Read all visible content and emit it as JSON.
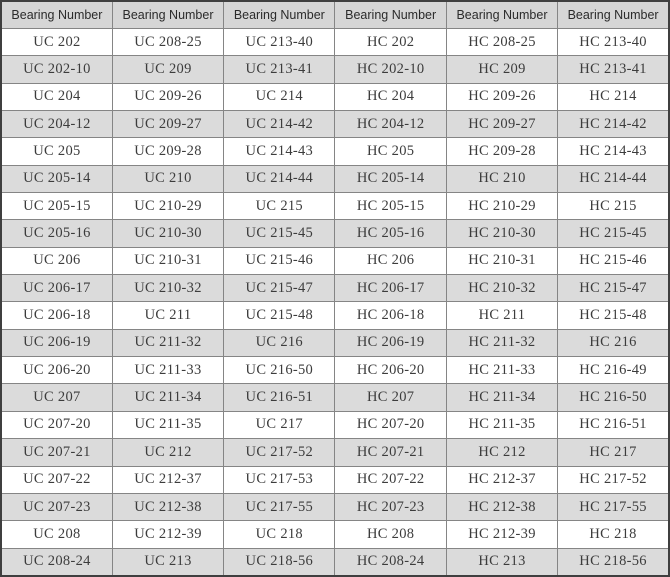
{
  "table": {
    "header_label": "Bearing Number",
    "num_columns": 6,
    "rows": [
      [
        "UC 202",
        "UC 208-25",
        "UC 213-40",
        "HC 202",
        "HC 208-25",
        "HC 213-40"
      ],
      [
        "UC 202-10",
        "UC 209",
        "UC 213-41",
        "HC 202-10",
        "HC 209",
        "HC 213-41"
      ],
      [
        "UC 204",
        "UC 209-26",
        "UC 214",
        "HC 204",
        "HC 209-26",
        "HC 214"
      ],
      [
        "UC 204-12",
        "UC 209-27",
        "UC 214-42",
        "HC 204-12",
        "HC 209-27",
        "HC 214-42"
      ],
      [
        "UC 205",
        "UC 209-28",
        "UC 214-43",
        "HC 205",
        "HC 209-28",
        "HC 214-43"
      ],
      [
        "UC 205-14",
        "UC 210",
        "UC 214-44",
        "HC 205-14",
        "HC 210",
        "HC 214-44"
      ],
      [
        "UC 205-15",
        "UC 210-29",
        "UC 215",
        "HC 205-15",
        "HC 210-29",
        "HC 215"
      ],
      [
        "UC 205-16",
        "UC 210-30",
        "UC 215-45",
        "HC 205-16",
        "HC 210-30",
        "HC 215-45"
      ],
      [
        "UC 206",
        "UC 210-31",
        "UC 215-46",
        "HC 206",
        "HC 210-31",
        "HC 215-46"
      ],
      [
        "UC 206-17",
        "UC 210-32",
        "UC 215-47",
        "HC 206-17",
        "HC 210-32",
        "HC 215-47"
      ],
      [
        "UC 206-18",
        "UC 211",
        "UC 215-48",
        "HC 206-18",
        "HC 211",
        "HC 215-48"
      ],
      [
        "UC 206-19",
        "UC 211-32",
        "UC 216",
        "HC 206-19",
        "HC 211-32",
        "HC 216"
      ],
      [
        "UC 206-20",
        "UC 211-33",
        "UC 216-50",
        "HC 206-20",
        "HC 211-33",
        "HC 216-49"
      ],
      [
        "UC 207",
        "UC 211-34",
        "UC 216-51",
        "HC 207",
        "HC 211-34",
        "HC 216-50"
      ],
      [
        "UC 207-20",
        "UC 211-35",
        "UC 217",
        "HC 207-20",
        "HC 211-35",
        "HC 216-51"
      ],
      [
        "UC 207-21",
        "UC 212",
        "UC 217-52",
        "HC 207-21",
        "HC 212",
        "HC 217"
      ],
      [
        "UC 207-22",
        "UC 212-37",
        "UC 217-53",
        "HC 207-22",
        "HC 212-37",
        "HC 217-52"
      ],
      [
        "UC 207-23",
        "UC 212-38",
        "UC 217-55",
        "HC 207-23",
        "HC 212-38",
        "HC 217-55"
      ],
      [
        "UC 208",
        "UC 212-39",
        "UC 218",
        "HC 208",
        "HC 212-39",
        "HC 218"
      ],
      [
        "UC 208-24",
        "UC 213",
        "UC 218-56",
        "HC 208-24",
        "HC 213",
        "HC 218-56"
      ]
    ]
  },
  "colors": {
    "header_bg": "#d6d6d6",
    "row_alt_bg": "#dbdbdb",
    "row_bg": "#ffffff",
    "border": "#858585",
    "outer_border": "#3f3f3f",
    "header_text": "#2b2b2b",
    "cell_text": "#3c3c3c"
  }
}
